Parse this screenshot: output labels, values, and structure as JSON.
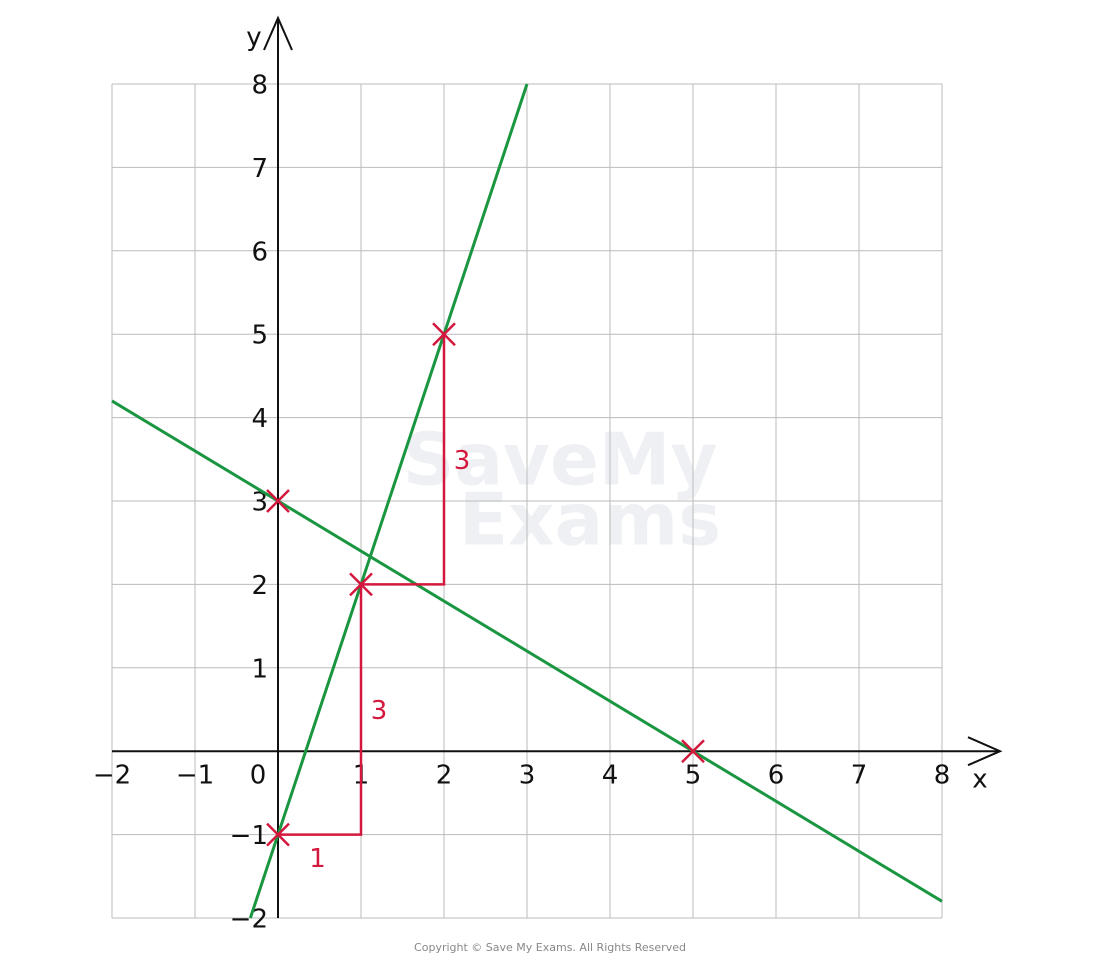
{
  "chart_data": {
    "type": "line",
    "x_label": "x",
    "y_label": "y",
    "xlim": [
      -2,
      8
    ],
    "ylim": [
      -2,
      8
    ],
    "xticks": [
      {
        "value": -2,
        "label": "−2"
      },
      {
        "value": -1,
        "label": "−1"
      },
      0,
      1,
      2,
      3,
      4,
      5,
      6,
      7,
      8
    ],
    "yticks": [
      {
        "value": -2,
        "label": "−2"
      },
      {
        "value": -1,
        "label": "−1"
      },
      1,
      2,
      3,
      4,
      5,
      6,
      7,
      8
    ],
    "grid": true,
    "series": [
      {
        "color": "#1a9641",
        "x": [
          -0.333,
          3
        ],
        "values": [
          -2,
          8
        ]
      },
      {
        "color": "#1a9641",
        "x": [
          -2,
          8
        ],
        "values": [
          4.2,
          -1.8
        ]
      }
    ],
    "steps": {
      "color": "#d4183d",
      "x": [
        0,
        1,
        1,
        2,
        2
      ],
      "values": [
        -1,
        -1,
        2,
        2,
        5
      ]
    },
    "points": {
      "color": "#d4183d",
      "x": [
        0,
        1,
        2,
        0,
        5
      ],
      "values": [
        -1,
        2,
        5,
        3,
        0
      ]
    },
    "annotations": [
      "1",
      "3",
      "3"
    ],
    "watermark": [
      "SaveMy",
      "Exams"
    ],
    "footer": "Copyright © Save My Exams. All Rights Reserved"
  }
}
